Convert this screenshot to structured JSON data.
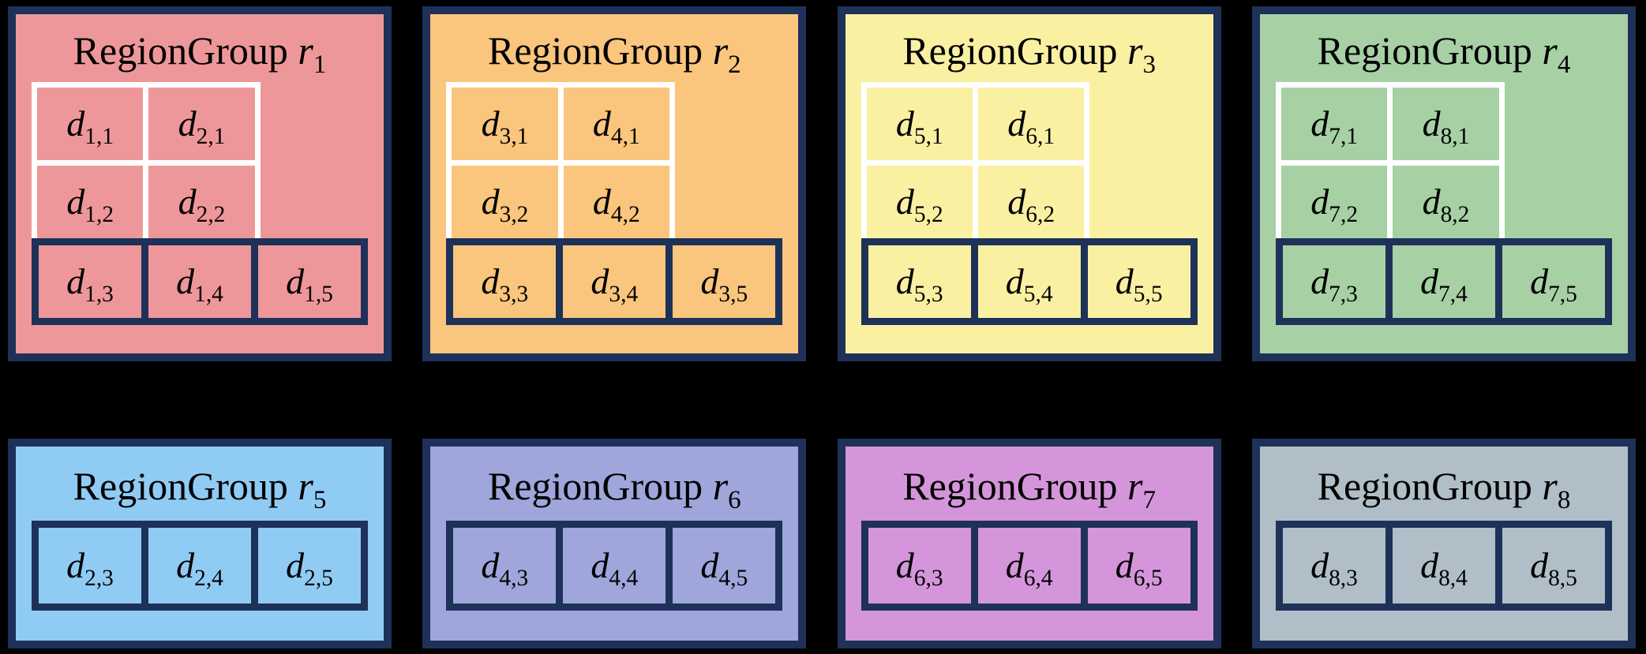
{
  "figure": {
    "colors": {
      "canvas_bg": "#000000",
      "outline_navy": "#1E3158",
      "grid_line_white": "#FFFFFF",
      "text": "#000000"
    },
    "groups": [
      {
        "name": "RegionGroup r1",
        "title_prefix": "RegionGroup ",
        "title_var": "r",
        "title_sub": "1",
        "bg": "#EE979A",
        "grid_cells": [
          {
            "base": "d",
            "sub": "1,1"
          },
          {
            "base": "d",
            "sub": "2,1"
          },
          {
            "base": "d",
            "sub": "1,2"
          },
          {
            "base": "d",
            "sub": "2,2"
          }
        ],
        "row_cells": [
          {
            "base": "d",
            "sub": "1,3"
          },
          {
            "base": "d",
            "sub": "1,4"
          },
          {
            "base": "d",
            "sub": "1,5"
          }
        ]
      },
      {
        "name": "RegionGroup r2",
        "title_prefix": "RegionGroup ",
        "title_var": "r",
        "title_sub": "2",
        "bg": "#FAC57D",
        "grid_cells": [
          {
            "base": "d",
            "sub": "3,1"
          },
          {
            "base": "d",
            "sub": "4,1"
          },
          {
            "base": "d",
            "sub": "3,2"
          },
          {
            "base": "d",
            "sub": "4,2"
          }
        ],
        "row_cells": [
          {
            "base": "d",
            "sub": "3,3"
          },
          {
            "base": "d",
            "sub": "3,4"
          },
          {
            "base": "d",
            "sub": "3,5"
          }
        ]
      },
      {
        "name": "RegionGroup r3",
        "title_prefix": "RegionGroup ",
        "title_var": "r",
        "title_sub": "3",
        "bg": "#FAF0A2",
        "grid_cells": [
          {
            "base": "d",
            "sub": "5,1"
          },
          {
            "base": "d",
            "sub": "6,1"
          },
          {
            "base": "d",
            "sub": "5,2"
          },
          {
            "base": "d",
            "sub": "6,2"
          }
        ],
        "row_cells": [
          {
            "base": "d",
            "sub": "5,3"
          },
          {
            "base": "d",
            "sub": "5,4"
          },
          {
            "base": "d",
            "sub": "5,5"
          }
        ]
      },
      {
        "name": "RegionGroup r4",
        "title_prefix": "RegionGroup ",
        "title_var": "r",
        "title_sub": "4",
        "bg": "#A7D0A5",
        "grid_cells": [
          {
            "base": "d",
            "sub": "7,1"
          },
          {
            "base": "d",
            "sub": "8,1"
          },
          {
            "base": "d",
            "sub": "7,2"
          },
          {
            "base": "d",
            "sub": "8,2"
          }
        ],
        "row_cells": [
          {
            "base": "d",
            "sub": "7,3"
          },
          {
            "base": "d",
            "sub": "7,4"
          },
          {
            "base": "d",
            "sub": "7,5"
          }
        ]
      },
      {
        "name": "RegionGroup r5",
        "title_prefix": "RegionGroup ",
        "title_var": "r",
        "title_sub": "5",
        "bg": "#90CBF4",
        "row_cells": [
          {
            "base": "d",
            "sub": "2,3"
          },
          {
            "base": "d",
            "sub": "2,4"
          },
          {
            "base": "d",
            "sub": "2,5"
          }
        ]
      },
      {
        "name": "RegionGroup r6",
        "title_prefix": "RegionGroup ",
        "title_var": "r",
        "title_sub": "6",
        "bg": "#9EA6DB",
        "row_cells": [
          {
            "base": "d",
            "sub": "4,3"
          },
          {
            "base": "d",
            "sub": "4,4"
          },
          {
            "base": "d",
            "sub": "4,5"
          }
        ]
      },
      {
        "name": "RegionGroup r7",
        "title_prefix": "RegionGroup ",
        "title_var": "r",
        "title_sub": "7",
        "bg": "#D595DB",
        "row_cells": [
          {
            "base": "d",
            "sub": "6,3"
          },
          {
            "base": "d",
            "sub": "6,4"
          },
          {
            "base": "d",
            "sub": "6,5"
          }
        ]
      },
      {
        "name": "RegionGroup r8",
        "title_prefix": "RegionGroup ",
        "title_var": "r",
        "title_sub": "8",
        "bg": "#B0BFC7",
        "row_cells": [
          {
            "base": "d",
            "sub": "8,3"
          },
          {
            "base": "d",
            "sub": "8,4"
          },
          {
            "base": "d",
            "sub": "8,5"
          }
        ]
      }
    ]
  }
}
